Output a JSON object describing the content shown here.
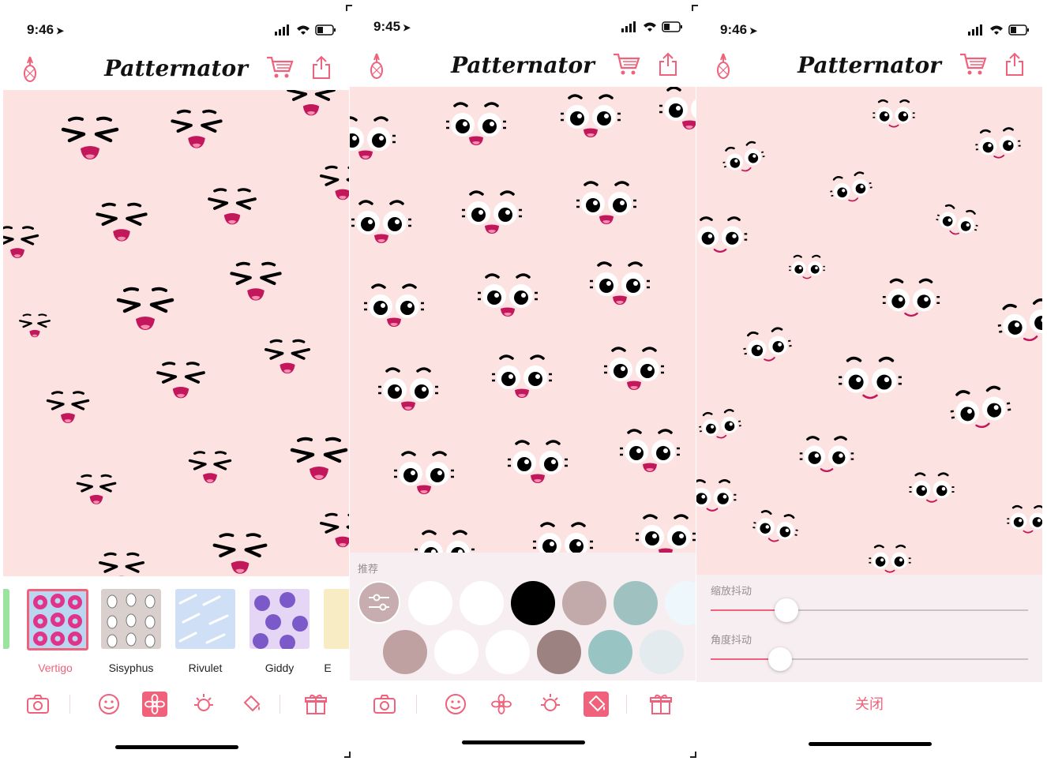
{
  "colors": {
    "accent": "#f0617b",
    "pattern_bg": "#fde2e2",
    "drawer_bg": "#f6eef0"
  },
  "app": {
    "logo": "Patternator"
  },
  "screens": [
    {
      "status_time": "9:46",
      "patterns": [
        {
          "name": "Vertigo"
        },
        {
          "name": "Sisyphus"
        },
        {
          "name": "Rivulet"
        },
        {
          "name": "Giddy"
        },
        {
          "name": "E"
        }
      ],
      "toolbar": [
        "camera-icon",
        "smiley-icon",
        "flower-icon",
        "sun-icon",
        "paint-bucket-icon",
        "gift-icon"
      ],
      "active_tool": "flower-icon"
    },
    {
      "status_time": "9:45",
      "section_label": "推荐",
      "swatches_row1": [
        "#ffffff",
        "#ffffff",
        "#000000",
        "#c2a9aa",
        "#9fc1c0",
        "#eef7fb"
      ],
      "swatches_row2": [
        "#bfa1a2",
        "#ffffff",
        "#ffffff",
        "#9c8381",
        "#98c4c3",
        "#e3ebef"
      ],
      "toolbar": [
        "camera-icon",
        "smiley-icon",
        "flower-icon",
        "sun-icon",
        "paint-bucket-icon",
        "gift-icon"
      ],
      "active_tool": "paint-bucket-icon"
    },
    {
      "status_time": "9:46",
      "sliders": [
        {
          "label": "缩放抖动",
          "value": 0.24
        },
        {
          "label": "角度抖动",
          "value": 0.22
        }
      ],
      "close_label": "关闭"
    }
  ]
}
